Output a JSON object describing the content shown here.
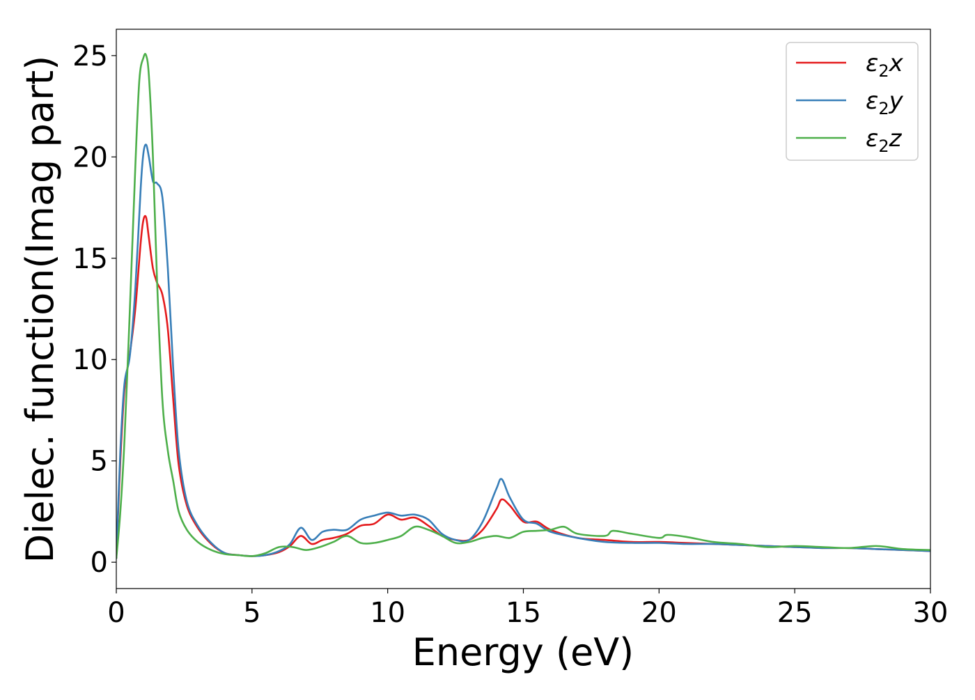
{
  "chart_data": {
    "type": "line",
    "title": "",
    "xlabel": "Energy (eV)",
    "ylabel": "Dielec. function(Imag part)",
    "xlim": [
      0,
      30
    ],
    "ylim": [
      -1.3,
      26.3
    ],
    "xticks": [
      0,
      5,
      10,
      15,
      20,
      25,
      30
    ],
    "yticks": [
      0,
      5,
      10,
      15,
      20,
      25
    ],
    "grid": false,
    "legend_position": "top-right",
    "series": [
      {
        "name": "ε2x",
        "color": "#e41a1c",
        "x": [
          0,
          0.15,
          0.3,
          0.5,
          0.7,
          0.9,
          1.0,
          1.1,
          1.2,
          1.35,
          1.5,
          1.7,
          1.9,
          2.1,
          2.3,
          2.6,
          3.0,
          3.5,
          4.0,
          4.5,
          5.0,
          5.5,
          6.0,
          6.4,
          6.8,
          7.2,
          7.6,
          8.0,
          8.5,
          9.0,
          9.5,
          10.0,
          10.5,
          11.0,
          11.5,
          12.0,
          12.5,
          13.0,
          13.5,
          14.0,
          14.2,
          14.5,
          15.0,
          15.5,
          16.0,
          17.0,
          18.0,
          19.0,
          20.0,
          21.0,
          22.0,
          23.0,
          24.0,
          25.0,
          26.0,
          27.0,
          28.0,
          29.0,
          30.0
        ],
        "y": [
          0.2,
          5.0,
          8.5,
          10.3,
          12.5,
          15.8,
          16.9,
          17.0,
          16.0,
          14.5,
          13.8,
          13.2,
          11.5,
          8.0,
          4.8,
          2.8,
          1.7,
          0.9,
          0.45,
          0.35,
          0.3,
          0.35,
          0.5,
          0.8,
          1.3,
          0.9,
          1.1,
          1.2,
          1.4,
          1.8,
          1.9,
          2.35,
          2.1,
          2.2,
          1.8,
          1.3,
          1.1,
          1.1,
          1.6,
          2.6,
          3.1,
          2.8,
          2.0,
          2.0,
          1.6,
          1.2,
          1.1,
          1.0,
          1.0,
          0.95,
          0.9,
          0.85,
          0.8,
          0.75,
          0.7,
          0.7,
          0.65,
          0.6,
          0.55
        ]
      },
      {
        "name": "ε2y",
        "color": "#377eb8",
        "x": [
          0,
          0.15,
          0.3,
          0.5,
          0.7,
          0.9,
          1.0,
          1.1,
          1.2,
          1.35,
          1.5,
          1.7,
          1.9,
          2.1,
          2.3,
          2.6,
          3.0,
          3.5,
          4.0,
          4.5,
          5.0,
          5.5,
          6.0,
          6.4,
          6.8,
          7.2,
          7.6,
          8.0,
          8.5,
          9.0,
          9.5,
          10.0,
          10.5,
          11.0,
          11.5,
          12.0,
          12.5,
          13.0,
          13.5,
          14.0,
          14.2,
          14.5,
          15.0,
          15.5,
          16.0,
          17.0,
          18.0,
          19.0,
          20.0,
          21.0,
          22.0,
          23.0,
          24.0,
          25.0,
          26.0,
          27.0,
          28.0,
          29.0,
          30.0
        ],
        "y": [
          0.2,
          5.5,
          8.8,
          10.2,
          13.5,
          18.5,
          20.2,
          20.6,
          20.0,
          18.8,
          18.7,
          18.0,
          14.5,
          9.5,
          5.5,
          3.0,
          1.8,
          0.95,
          0.45,
          0.35,
          0.3,
          0.35,
          0.55,
          0.9,
          1.7,
          1.1,
          1.5,
          1.6,
          1.6,
          2.1,
          2.3,
          2.45,
          2.3,
          2.35,
          2.1,
          1.4,
          1.1,
          1.1,
          2.0,
          3.6,
          4.1,
          3.2,
          2.1,
          1.9,
          1.5,
          1.2,
          1.0,
          0.95,
          0.95,
          0.9,
          0.9,
          0.85,
          0.8,
          0.75,
          0.7,
          0.7,
          0.65,
          0.6,
          0.55
        ]
      },
      {
        "name": "ε2z",
        "color": "#4daf4a",
        "x": [
          0,
          0.15,
          0.3,
          0.5,
          0.7,
          0.85,
          1.0,
          1.1,
          1.2,
          1.35,
          1.5,
          1.7,
          1.9,
          2.1,
          2.3,
          2.6,
          3.0,
          3.5,
          4.0,
          4.5,
          5.0,
          5.5,
          6.0,
          6.5,
          7.0,
          7.5,
          8.0,
          8.5,
          9.0,
          9.5,
          10.0,
          10.5,
          11.0,
          11.5,
          12.0,
          12.5,
          13.0,
          13.5,
          14.0,
          14.5,
          15.0,
          15.5,
          16.0,
          16.5,
          17.0,
          18.0,
          18.3,
          19.0,
          20.0,
          20.3,
          21.0,
          22.0,
          23.0,
          24.0,
          25.0,
          26.0,
          27.0,
          28.0,
          29.0,
          30.0
        ],
        "y": [
          0.2,
          2.5,
          6.0,
          12.5,
          19.5,
          23.8,
          24.9,
          25.0,
          24.0,
          20.0,
          14.0,
          8.0,
          5.5,
          4.0,
          2.5,
          1.6,
          1.0,
          0.6,
          0.4,
          0.35,
          0.3,
          0.45,
          0.75,
          0.75,
          0.6,
          0.75,
          1.0,
          1.3,
          0.95,
          0.95,
          1.1,
          1.3,
          1.75,
          1.6,
          1.3,
          0.95,
          1.0,
          1.2,
          1.3,
          1.2,
          1.5,
          1.55,
          1.6,
          1.75,
          1.4,
          1.3,
          1.55,
          1.4,
          1.2,
          1.35,
          1.25,
          1.0,
          0.9,
          0.75,
          0.8,
          0.75,
          0.7,
          0.8,
          0.65,
          0.6
        ]
      }
    ]
  }
}
